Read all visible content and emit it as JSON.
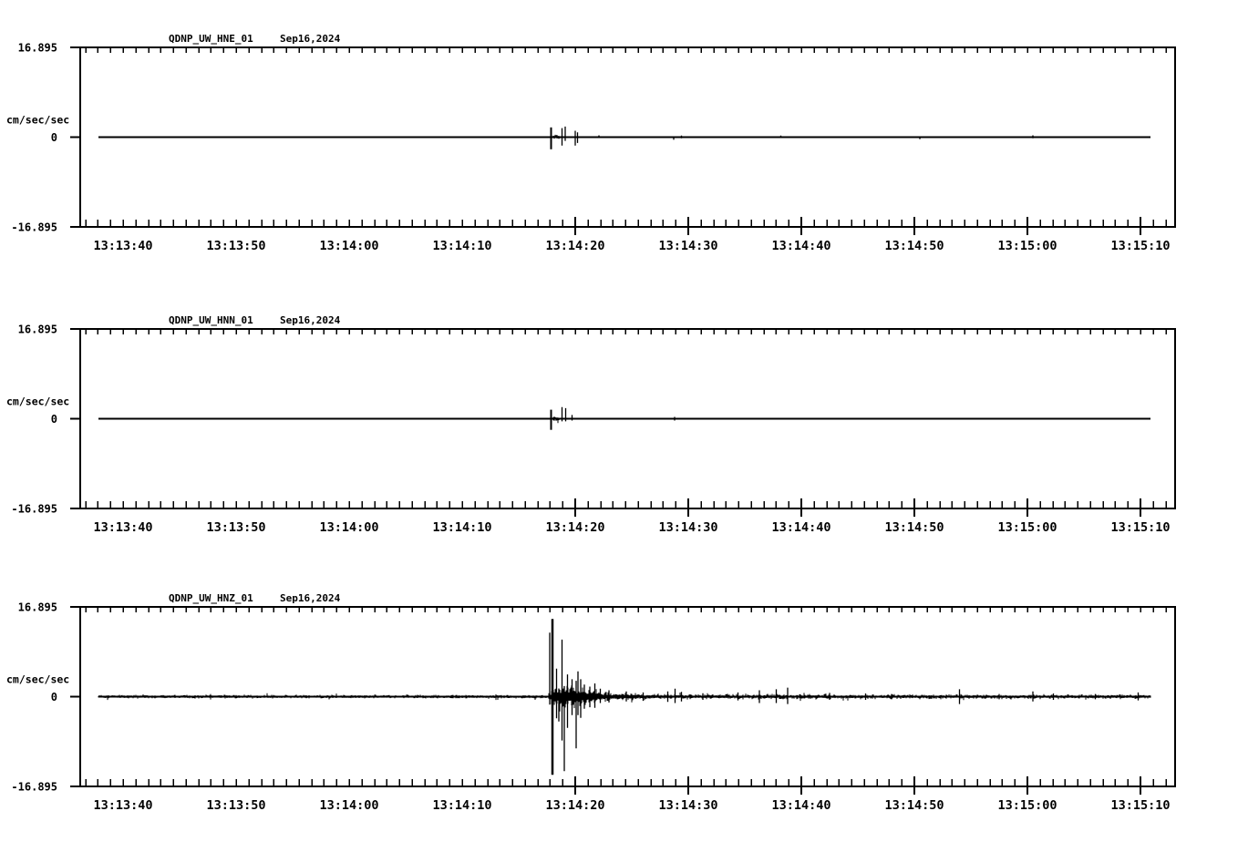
{
  "figure": {
    "background": "#ffffff",
    "foreground": "#000000"
  },
  "chart_data": {
    "type": "line",
    "figure_kind": "three-component-seismogram",
    "time_axis": {
      "tick_labels": [
        "13:13:40",
        "13:13:50",
        "13:14:00",
        "13:14:10",
        "13:14:20",
        "13:14:30",
        "13:14:40",
        "13:14:50",
        "13:15:00",
        "13:15:10"
      ],
      "seconds_between_labeled_ticks": 10,
      "minor_divisions_per_interval": 9,
      "trace_time_range_seconds_rel_first_tick": [
        -2.2,
        90.9
      ]
    },
    "y_axis": {
      "label": "cm/sec/sec",
      "ylim": [
        -16.895,
        16.895
      ],
      "tick_labels": [
        "16.895",
        "0",
        "-16.895"
      ]
    },
    "spike_format": "[seconds_after_13:13:40, peak_up_cm_per_s2, peak_down_cm_per_s2, optional_line_width_px]",
    "band_format": "[t_start_s, t_end_s, typical_peak_amplitude_cm_per_s2]",
    "panels": [
      {
        "station": "QDNP_UW_HNE_01",
        "date": "Sep16,2024",
        "baseline_value": 0,
        "noise_floor": 0,
        "bands": [
          [
            38.0,
            38.7,
            0.45
          ]
        ],
        "spikes": [
          [
            37.85,
            1.85,
            2.3,
            2
          ],
          [
            38.85,
            1.7,
            1.6
          ],
          [
            39.1,
            2.0,
            0.7
          ],
          [
            40.0,
            1.2,
            1.6
          ],
          [
            40.2,
            0.9,
            1.1
          ],
          [
            42.1,
            0.35,
            0.15
          ],
          [
            48.7,
            0.15,
            0.5
          ],
          [
            49.4,
            0.3,
            0.2
          ],
          [
            58.2,
            0.3,
            0.15
          ],
          [
            70.5,
            0.1,
            0.4
          ],
          [
            80.5,
            0.35,
            0.2
          ]
        ]
      },
      {
        "station": "QDNP_UW_HNN_01",
        "date": "Sep16,2024",
        "baseline_value": 0,
        "noise_floor": 0,
        "bands": [
          [
            38.0,
            38.55,
            0.38
          ]
        ],
        "spikes": [
          [
            37.85,
            1.7,
            2.1,
            2
          ],
          [
            38.85,
            2.2,
            0.5
          ],
          [
            39.15,
            2.0,
            0.5
          ],
          [
            39.7,
            0.7,
            0.35
          ],
          [
            48.8,
            0.35,
            0.35
          ]
        ]
      },
      {
        "station": "QDNP_UW_HNZ_01",
        "date": "Sep16,2024",
        "baseline_value": 0,
        "noise_floor": 0.3,
        "bands": [
          [
            37.6,
            37.9,
            0.8
          ],
          [
            37.9,
            39.4,
            2.0
          ],
          [
            39.4,
            40.6,
            1.9
          ],
          [
            40.6,
            41.9,
            1.5
          ],
          [
            41.9,
            43.2,
            0.9
          ],
          [
            43.2,
            45.5,
            0.65
          ],
          [
            45.5,
            48.5,
            0.5
          ],
          [
            48.5,
            63.0,
            0.42
          ],
          [
            63.0,
            90.9,
            0.38
          ]
        ],
        "spikes": [
          [
            37.75,
            12.1,
            1.5
          ],
          [
            37.97,
            14.7,
            14.8,
            2.5
          ],
          [
            38.35,
            5.3,
            4.1
          ],
          [
            38.55,
            1.5,
            4.7
          ],
          [
            38.83,
            10.8,
            8.3
          ],
          [
            39.03,
            2.0,
            14.1
          ],
          [
            39.3,
            4.2,
            5.9
          ],
          [
            39.7,
            3.3,
            3.5
          ],
          [
            40.1,
            3.0,
            9.8
          ],
          [
            40.25,
            4.8,
            3.5
          ],
          [
            40.5,
            3.3,
            4.0
          ],
          [
            40.8,
            2.3,
            2.3
          ],
          [
            41.3,
            1.9,
            2.0
          ],
          [
            41.75,
            2.5,
            2.1
          ],
          [
            42.2,
            1.5,
            1.2
          ],
          [
            43.0,
            1.2,
            1.1
          ],
          [
            44.5,
            1.0,
            0.9
          ],
          [
            46.0,
            0.8,
            0.8
          ],
          [
            48.2,
            1.0,
            1.0
          ],
          [
            48.85,
            1.5,
            1.2
          ],
          [
            49.4,
            0.9,
            0.9
          ],
          [
            51.3,
            0.65,
            0.6
          ],
          [
            54.4,
            0.8,
            0.7
          ],
          [
            56.3,
            1.2,
            1.2
          ],
          [
            57.8,
            1.4,
            1.2
          ],
          [
            58.8,
            1.7,
            1.4
          ],
          [
            62.5,
            0.7,
            0.6
          ],
          [
            65.7,
            0.6,
            0.6
          ],
          [
            68.0,
            0.5,
            0.5
          ],
          [
            74.0,
            1.4,
            1.4
          ],
          [
            77.5,
            0.5,
            0.5
          ],
          [
            80.5,
            1.0,
            0.9
          ],
          [
            82.3,
            0.6,
            0.6
          ],
          [
            86.0,
            0.5,
            0.5
          ],
          [
            89.8,
            0.8,
            0.7
          ]
        ]
      }
    ]
  }
}
